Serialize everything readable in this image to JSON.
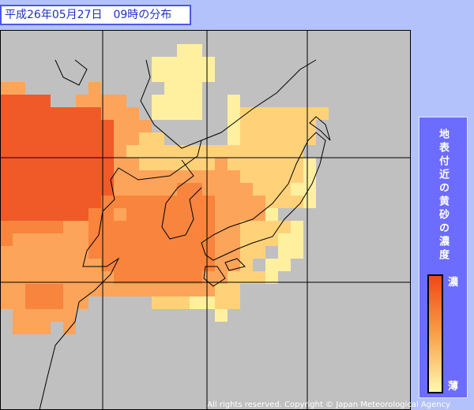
{
  "header": {
    "title": "平成26年05月27日　09時の分布"
  },
  "legend": {
    "title": "地表付近の黄砂の濃度",
    "high": "濃",
    "low": "薄"
  },
  "footer": {
    "copyright": "All rights reserved. Copyright © Japan Meteorological Agency"
  }
}
